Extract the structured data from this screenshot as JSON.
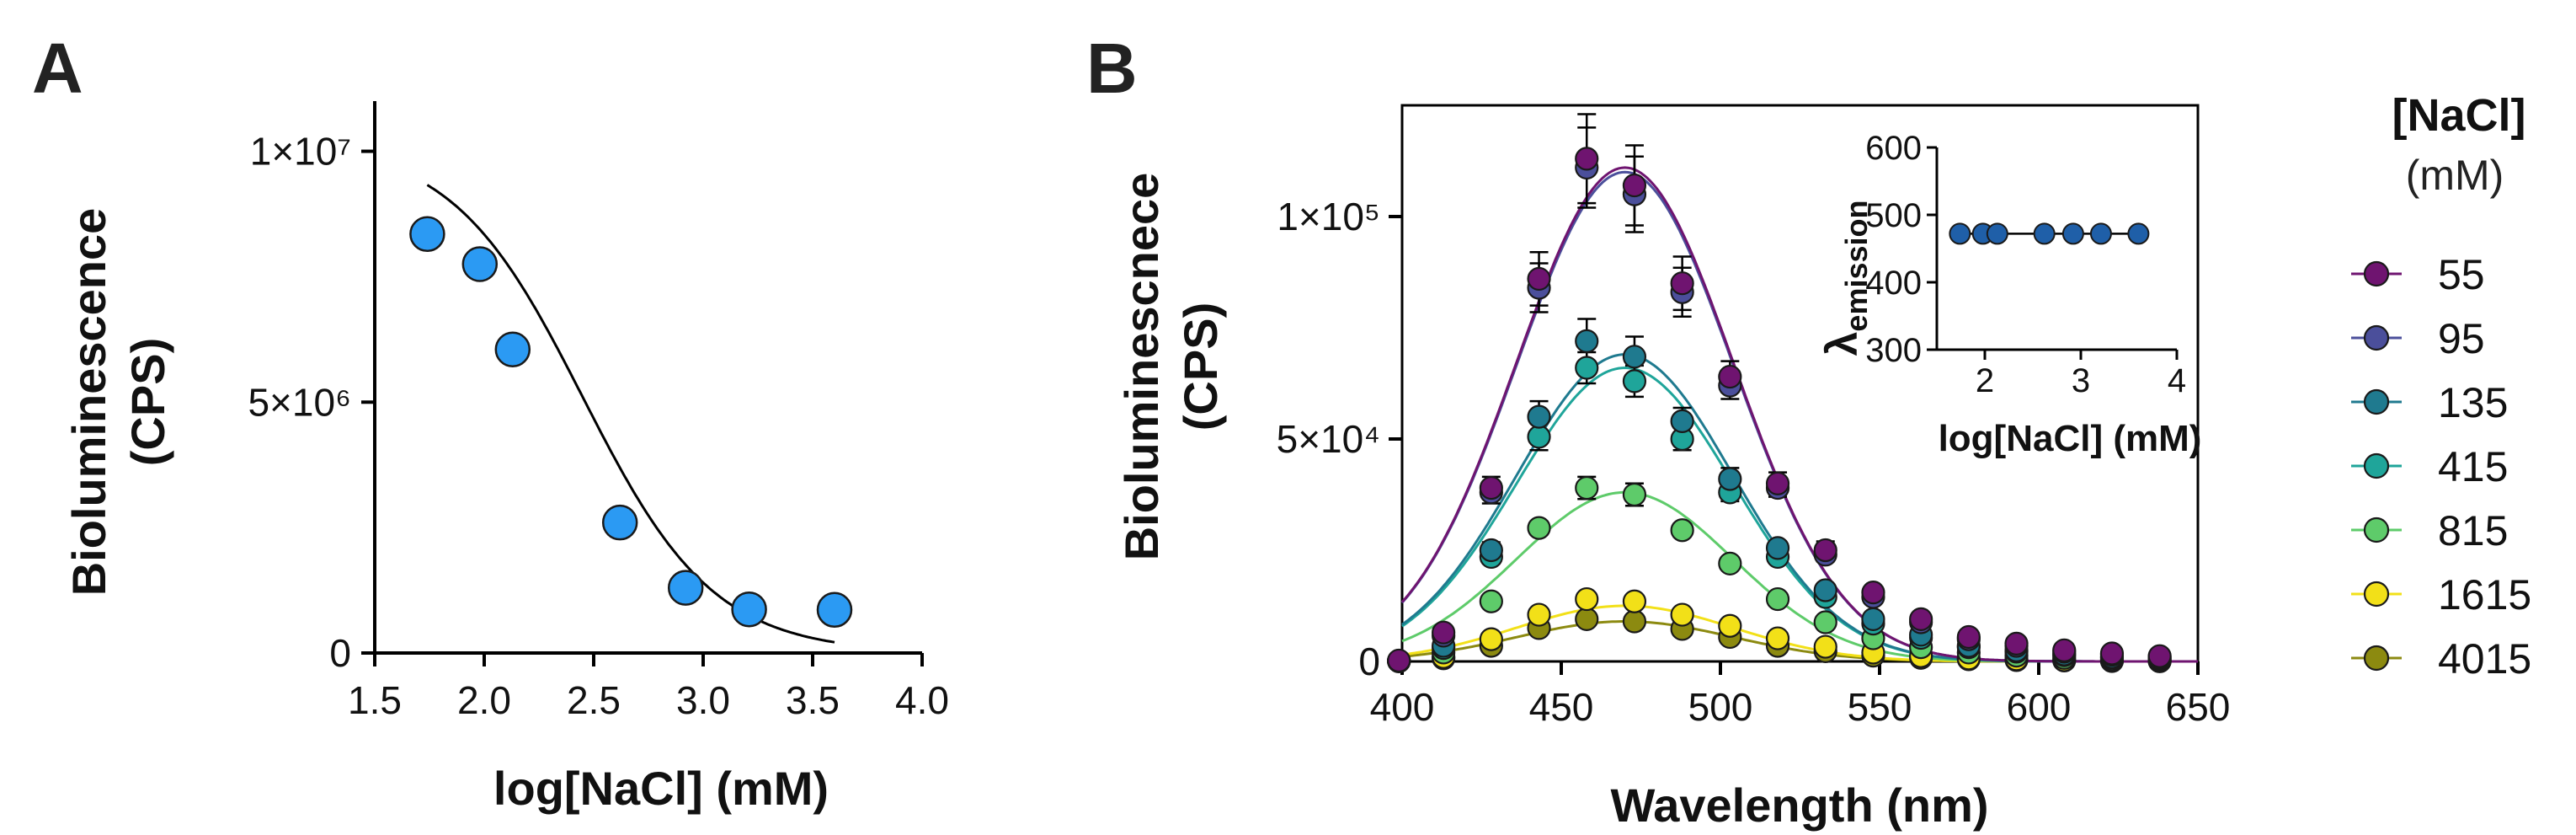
{
  "panels": {
    "a_label": "A",
    "b_label": "B"
  },
  "legend": {
    "title": "[NaCl]",
    "unit": "(mM)"
  },
  "chart_data": [
    {
      "panel": "A",
      "type": "scatter",
      "title": "",
      "xlabel": "log[NaCl] (mM)",
      "ylabel_line1": "Bioluminescence",
      "ylabel_line2": "(CPS)",
      "xlim": [
        1.5,
        4.0
      ],
      "ylim": [
        0,
        11000000
      ],
      "xticks": [
        1.5,
        2.0,
        2.5,
        3.0,
        3.5,
        4.0
      ],
      "xtick_labels": [
        "1.5",
        "2.0",
        "2.5",
        "3.0",
        "3.5",
        "4.0"
      ],
      "yticks": [
        0,
        5000000,
        10000000
      ],
      "ytick_labels": [
        "0",
        "5×10⁶",
        "1×10⁷"
      ],
      "x": [
        1.74,
        1.98,
        2.13,
        2.62,
        2.92,
        3.21,
        3.6
      ],
      "y": [
        8350000,
        7750000,
        6050000,
        2600000,
        1300000,
        870000,
        860000
      ],
      "point_color": "#2b9af3",
      "fit": {
        "type": "sigmoid",
        "bottom": 0,
        "top": 10200000,
        "logIC50": 2.45,
        "hill": -1.45,
        "x_range": [
          1.74,
          3.6
        ],
        "color": "#000000"
      },
      "grid": false
    },
    {
      "panel": "B",
      "type": "scatter",
      "xlabel": "Wavelength (nm)",
      "ylabel_line1": "Bioluminescnece",
      "ylabel_line2": "(CPS)",
      "xlim": [
        400,
        650
      ],
      "ylim": [
        0,
        125000
      ],
      "xticks": [
        400,
        450,
        500,
        550,
        600,
        650
      ],
      "xtick_labels": [
        "400",
        "450",
        "500",
        "550",
        "600",
        "650"
      ],
      "yticks": [
        0,
        50000,
        100000
      ],
      "ytick_labels": [
        "0",
        "5×10⁴",
        "1×10⁵"
      ],
      "x": [
        399,
        413,
        428,
        443,
        458,
        473,
        488,
        503,
        518,
        533,
        548,
        563,
        578,
        593,
        608,
        623,
        638
      ],
      "fit_center": 470,
      "fit_sigma": 34,
      "grid": false,
      "series": [
        {
          "name": "55",
          "color": "#6f1470",
          "amp": 111000,
          "values": [
            200,
            6500,
            39000,
            86000,
            113000,
            107000,
            85000,
            64000,
            40000,
            25000,
            15500,
            9500,
            5500,
            4000,
            2500,
            1800,
            1200
          ],
          "errors": [
            0,
            800,
            2500,
            6000,
            10000,
            9000,
            6000,
            3500,
            2500,
            2000,
            0,
            0,
            0,
            0,
            0,
            0,
            0
          ]
        },
        {
          "name": "95",
          "color": "#4b4f9b",
          "amp": 110000,
          "values": [
            150,
            5800,
            38000,
            84000,
            111000,
            105000,
            83000,
            62000,
            39000,
            24000,
            14500,
            8800,
            5000,
            3500,
            2200,
            1500,
            1000
          ],
          "errors": [
            0,
            700,
            2500,
            5500,
            9000,
            8500,
            5500,
            3000,
            2000,
            1500,
            0,
            0,
            0,
            0,
            0,
            0,
            0
          ]
        },
        {
          "name": "135",
          "color": "#1f7a8f",
          "amp": 69000,
          "values": [
            120,
            3500,
            25000,
            55000,
            72000,
            68500,
            54000,
            41000,
            25500,
            16000,
            9500,
            6000,
            3500,
            2500,
            1600,
            1000,
            700
          ],
          "errors": [
            0,
            500,
            1800,
            3500,
            5000,
            4500,
            3000,
            2500,
            1500,
            1000,
            0,
            0,
            0,
            0,
            0,
            0,
            0
          ]
        },
        {
          "name": "415",
          "color": "#1fa59a",
          "amp": 66000,
          "values": [
            100,
            3000,
            23500,
            50500,
            66000,
            63000,
            50000,
            38000,
            23500,
            14500,
            8500,
            5300,
            3200,
            2200,
            1400,
            900,
            600
          ],
          "errors": [
            0,
            500,
            1500,
            3000,
            3500,
            3500,
            2500,
            2000,
            1300,
            900,
            0,
            0,
            0,
            0,
            0,
            0,
            0
          ]
        },
        {
          "name": "815",
          "color": "#5ecb6a",
          "amp": 38000,
          "values": [
            80,
            2000,
            13500,
            30000,
            39000,
            37500,
            29500,
            22000,
            14000,
            8800,
            5200,
            3200,
            2000,
            1300,
            800,
            500,
            300
          ],
          "errors": [
            0,
            300,
            900,
            1500,
            2500,
            2500,
            1500,
            1200,
            800,
            500,
            0,
            0,
            0,
            0,
            0,
            0,
            0
          ]
        },
        {
          "name": "1615",
          "color": "#f2e018",
          "amp": 12500,
          "values": [
            50,
            1000,
            5000,
            10500,
            14000,
            13500,
            10500,
            8000,
            5200,
            3300,
            2000,
            1200,
            700,
            500,
            300,
            200,
            100
          ],
          "errors": [
            0,
            0,
            400,
            800,
            1000,
            1000,
            800,
            500,
            300,
            0,
            0,
            0,
            0,
            0,
            0,
            0,
            0
          ]
        },
        {
          "name": "4015",
          "color": "#8c8a10",
          "amp": 9000,
          "values": [
            40,
            700,
            3500,
            7500,
            9500,
            9000,
            7300,
            5500,
            3500,
            2300,
            1300,
            800,
            500,
            300,
            200,
            100,
            50
          ],
          "errors": [
            0,
            0,
            300,
            500,
            700,
            700,
            500,
            400,
            200,
            0,
            0,
            0,
            0,
            0,
            0,
            0,
            0
          ]
        }
      ],
      "inset": {
        "type": "scatter",
        "xlabel": "log[NaCl] (mM)",
        "ylabel_main": "λ",
        "ylabel_sub": "emission",
        "xlim": [
          1.5,
          4.0
        ],
        "ylim": [
          300,
          600
        ],
        "xticks": [
          2,
          3,
          4
        ],
        "xtick_labels": [
          "2",
          "3",
          "4"
        ],
        "yticks": [
          300,
          400,
          500,
          600
        ],
        "ytick_labels": [
          "300",
          "400",
          "500",
          "600"
        ],
        "x": [
          1.74,
          1.98,
          2.13,
          2.62,
          2.92,
          3.21,
          3.6
        ],
        "y": [
          472,
          472,
          472,
          472,
          472,
          472,
          472
        ],
        "point_color": "#1f5fa8"
      }
    }
  ]
}
